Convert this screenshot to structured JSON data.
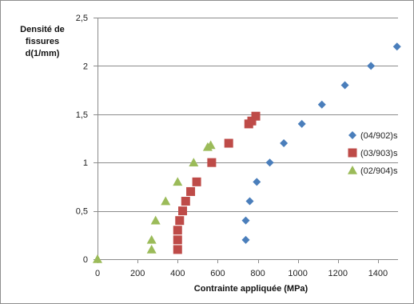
{
  "chart_data": {
    "type": "scatter",
    "ylabel_lines": [
      "Densité  de",
      "fissures",
      "d(1/mm)"
    ],
    "xlabel": "Contrainte appliquée (MPa)",
    "xlim": [
      0,
      1500
    ],
    "ylim": [
      0,
      2.5
    ],
    "x_ticks": [
      0,
      200,
      400,
      600,
      800,
      1000,
      1200,
      1400
    ],
    "y_ticks": [
      0,
      0.5,
      1,
      1.5,
      2,
      2.5
    ],
    "x_tick_labels": [
      "0",
      "200",
      "400",
      "600",
      "800",
      "1000",
      "1200",
      "1400"
    ],
    "y_tick_labels": [
      "0",
      "0,5",
      "1",
      "1,5",
      "2",
      "2,5"
    ],
    "grid": "horizontal",
    "legend_position": "right",
    "series": [
      {
        "name": "(04/902)s",
        "marker": "diamond",
        "color": "#4a7ebb",
        "points": [
          [
            740,
            0.2
          ],
          [
            740,
            0.4
          ],
          [
            760,
            0.6
          ],
          [
            795,
            0.8
          ],
          [
            860,
            1.0
          ],
          [
            930,
            1.2
          ],
          [
            1020,
            1.4
          ],
          [
            1120,
            1.6
          ],
          [
            1235,
            1.8
          ],
          [
            1365,
            2.0
          ],
          [
            1495,
            2.2
          ]
        ]
      },
      {
        "name": "(03/903)s",
        "marker": "square",
        "color": "#be4b48",
        "points": [
          [
            400,
            0.1
          ],
          [
            400,
            0.2
          ],
          [
            400,
            0.3
          ],
          [
            410,
            0.4
          ],
          [
            425,
            0.5
          ],
          [
            440,
            0.6
          ],
          [
            465,
            0.7
          ],
          [
            495,
            0.8
          ],
          [
            570,
            1.0
          ],
          [
            655,
            1.2
          ],
          [
            755,
            1.4
          ],
          [
            770,
            1.43
          ],
          [
            790,
            1.48
          ]
        ]
      },
      {
        "name": "(02/904)s",
        "marker": "triangle",
        "color": "#9bbb59",
        "points": [
          [
            0,
            0.0
          ],
          [
            270,
            0.1
          ],
          [
            270,
            0.2
          ],
          [
            290,
            0.4
          ],
          [
            340,
            0.6
          ],
          [
            400,
            0.8
          ],
          [
            480,
            1.0
          ],
          [
            550,
            1.16
          ],
          [
            565,
            1.18
          ]
        ]
      }
    ]
  }
}
